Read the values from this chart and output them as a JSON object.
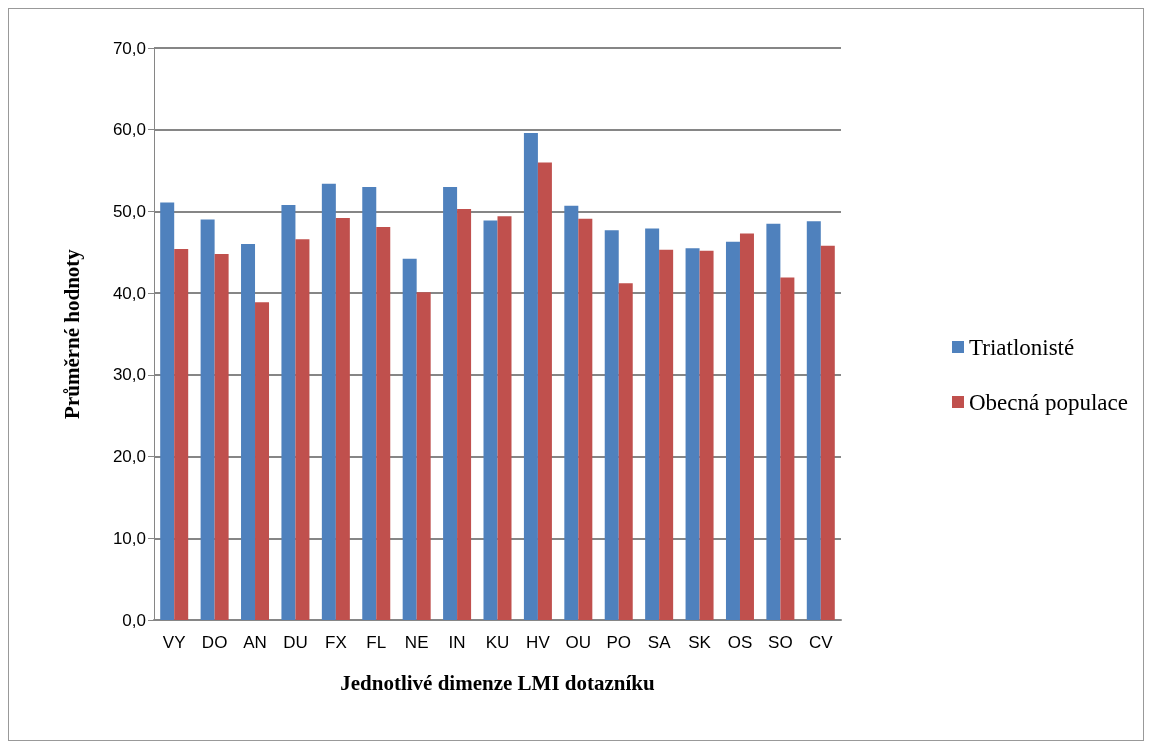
{
  "chart_data": {
    "type": "bar",
    "xlabel": "Jednotlivé dimenze LMI dotazníku",
    "ylabel": "Průměrné hodnoty",
    "categories": [
      "VY",
      "DO",
      "AN",
      "DU",
      "FX",
      "FL",
      "NE",
      "IN",
      "KU",
      "HV",
      "OU",
      "PO",
      "SA",
      "SK",
      "OS",
      "SO",
      "CV"
    ],
    "series": [
      {
        "name": "Triatlonisté",
        "color": "#4f81bd",
        "values": [
          51.1,
          49.0,
          46.0,
          50.8,
          53.4,
          53.0,
          44.2,
          53.0,
          48.9,
          59.6,
          50.7,
          47.7,
          47.9,
          45.5,
          46.3,
          48.5,
          48.8
        ]
      },
      {
        "name": "Obecná populace",
        "color": "#c0504d",
        "values": [
          45.4,
          44.8,
          38.9,
          46.6,
          49.2,
          48.1,
          40.1,
          50.3,
          49.4,
          56.0,
          49.1,
          41.2,
          45.3,
          45.2,
          47.3,
          41.9,
          45.8
        ]
      }
    ],
    "ylim": [
      0,
      70
    ],
    "yticks": [
      {
        "value": 0,
        "label": "0,0"
      },
      {
        "value": 10,
        "label": "10,0"
      },
      {
        "value": 20,
        "label": "20,0"
      },
      {
        "value": 30,
        "label": "30,0"
      },
      {
        "value": 40,
        "label": "40,0"
      },
      {
        "value": 50,
        "label": "50,0"
      },
      {
        "value": 60,
        "label": "60,0"
      },
      {
        "value": 70,
        "label": "70,0"
      }
    ],
    "grid": "y",
    "legend": "right"
  }
}
